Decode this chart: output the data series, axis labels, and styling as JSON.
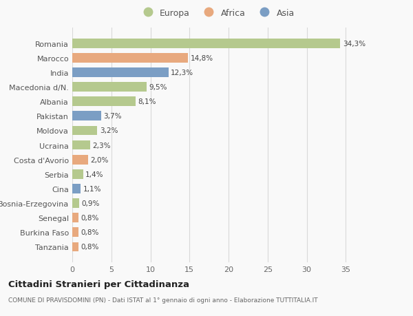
{
  "countries": [
    "Tanzania",
    "Burkina Faso",
    "Senegal",
    "Bosnia-Erzegovina",
    "Cina",
    "Serbia",
    "Costa d'Avorio",
    "Ucraina",
    "Moldova",
    "Pakistan",
    "Albania",
    "Macedonia d/N.",
    "India",
    "Marocco",
    "Romania"
  ],
  "values": [
    0.8,
    0.8,
    0.8,
    0.9,
    1.1,
    1.4,
    2.0,
    2.3,
    3.2,
    3.7,
    8.1,
    9.5,
    12.3,
    14.8,
    34.3
  ],
  "labels": [
    "0,8%",
    "0,8%",
    "0,8%",
    "0,9%",
    "1,1%",
    "1,4%",
    "2,0%",
    "2,3%",
    "3,2%",
    "3,7%",
    "8,1%",
    "9,5%",
    "12,3%",
    "14,8%",
    "34,3%"
  ],
  "continents": [
    "Africa",
    "Africa",
    "Africa",
    "Europa",
    "Asia",
    "Europa",
    "Africa",
    "Europa",
    "Europa",
    "Asia",
    "Europa",
    "Europa",
    "Asia",
    "Africa",
    "Europa"
  ],
  "continent_colors": {
    "Europa": "#b5c98e",
    "Africa": "#e8a97e",
    "Asia": "#7b9ec4"
  },
  "legend_items": [
    "Europa",
    "Africa",
    "Asia"
  ],
  "legend_colors": [
    "#b5c98e",
    "#e8a97e",
    "#7b9ec4"
  ],
  "title": "Cittadini Stranieri per Cittadinanza",
  "subtitle": "COMUNE DI PRAVISDOMINI (PN) - Dati ISTAT al 1° gennaio di ogni anno - Elaborazione TUTTITALIA.IT",
  "xlim": [
    0,
    37
  ],
  "xticks": [
    0,
    5,
    10,
    15,
    20,
    25,
    30,
    35
  ],
  "background_color": "#f9f9f9",
  "grid_color": "#d8d8d8",
  "bar_height": 0.65
}
